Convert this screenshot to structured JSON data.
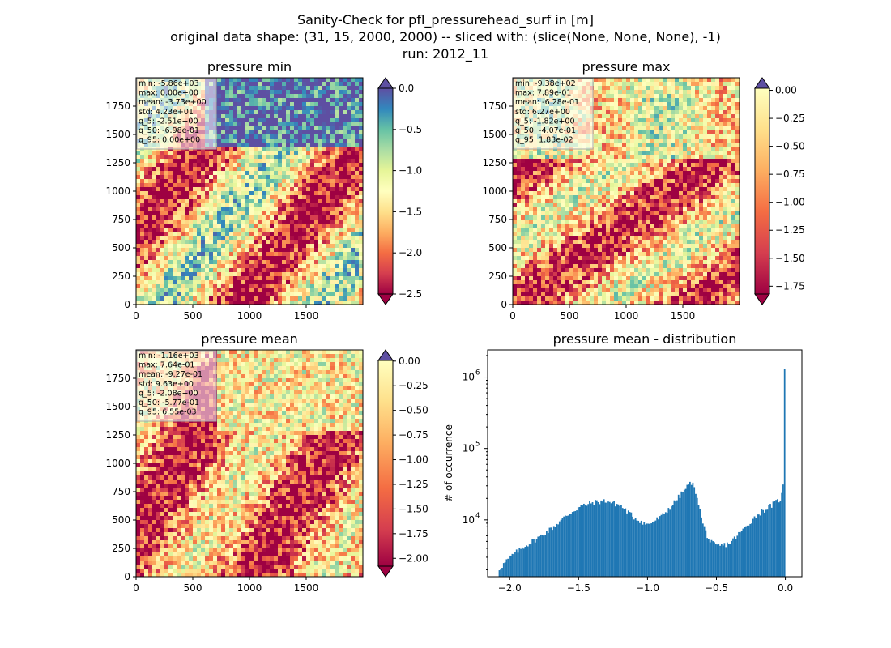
{
  "figure": {
    "title_lines": [
      "Sanity-Check for pfl_pressurehead_surf in [m]",
      "original data shape: (31, 15, 2000, 2000) -- sliced with: (slice(None, None, None), -1)",
      "run: 2012_11"
    ]
  },
  "chart_data": [
    {
      "type": "heatmap",
      "title": "pressure min",
      "colormap": "Spectral",
      "xticks": [
        "0",
        "500",
        "1000",
        "1500"
      ],
      "yticks": [
        "0",
        "250",
        "500",
        "750",
        "1000",
        "1250",
        "1500",
        "1750"
      ],
      "xlim": [
        0,
        2000
      ],
      "ylim": [
        0,
        2000
      ],
      "colorbar": {
        "ticks": [
          "0.0",
          "−0.5",
          "−1.0",
          "−1.5",
          "−2.0",
          "−2.5"
        ],
        "range": [
          -2.5,
          0.0
        ],
        "extend": "both"
      },
      "stats": [
        "min: -5.86e+03",
        "max: 0.00e+00",
        "mean: -3.73e+00",
        "std: 4.23e+01",
        "q_5: -2.51e+00",
        "q_50: -6.98e-01",
        "q_95: 0.00e+00"
      ]
    },
    {
      "type": "heatmap",
      "title": "pressure max",
      "colormap": "Spectral",
      "xticks": [
        "0",
        "500",
        "1000",
        "1500"
      ],
      "yticks": [
        "0",
        "250",
        "500",
        "750",
        "1000",
        "1250",
        "1500",
        "1750"
      ],
      "xlim": [
        0,
        2000
      ],
      "ylim": [
        0,
        2000
      ],
      "colorbar": {
        "ticks": [
          "0.00",
          "−0.25",
          "−0.50",
          "−0.75",
          "−1.00",
          "−1.25",
          "−1.50",
          "−1.75"
        ],
        "range": [
          -1.82,
          0.0183
        ],
        "extend": "both"
      },
      "stats": [
        "min: -9.38e+02",
        "max: 7.89e-01",
        "mean: -6.28e-01",
        "std: 6.27e+00",
        "q_5: -1.82e+00",
        "q_50: -4.07e-01",
        "q_95: 1.83e-02"
      ]
    },
    {
      "type": "heatmap",
      "title": "pressure mean",
      "colormap": "Spectral",
      "xticks": [
        "0",
        "500",
        "1000",
        "1500"
      ],
      "yticks": [
        "0",
        "250",
        "500",
        "750",
        "1000",
        "1250",
        "1500",
        "1750"
      ],
      "xlim": [
        0,
        2000
      ],
      "ylim": [
        0,
        2000
      ],
      "colorbar": {
        "ticks": [
          "0.00",
          "−0.25",
          "−0.50",
          "−0.75",
          "−1.00",
          "−1.25",
          "−1.50",
          "−1.75",
          "−2.00"
        ],
        "range": [
          -2.08,
          0.00655
        ],
        "extend": "both"
      },
      "stats": [
        "min: -1.16e+03",
        "max: 7.64e-01",
        "mean: -9.27e-01",
        "std: 9.63e+00",
        "q_5: -2.08e+00",
        "q_50: -5.77e-01",
        "q_95: 6.55e-03"
      ]
    },
    {
      "type": "bar",
      "title": "pressure mean - distribution",
      "ylabel": "# of occurrence",
      "xlabel": "",
      "yscale": "log",
      "color": "#1f77b4",
      "xlim": [
        -2.16,
        0.12
      ],
      "ylim": [
        1600,
        2400000
      ],
      "xticks": [
        "−2.0",
        "−1.5",
        "−1.0",
        "−0.5",
        "0.0"
      ],
      "xtick_values": [
        -2.0,
        -1.5,
        -1.0,
        -0.5,
        0.0
      ],
      "yticks": [
        "10",
        "10",
        "10"
      ],
      "ytick_exponents": [
        "4",
        "5",
        "6"
      ],
      "ytick_values": [
        10000,
        100000,
        1000000
      ],
      "bins": {
        "start": -2.08,
        "end": 0.0,
        "count": 200
      },
      "profile_points": [
        [
          -2.08,
          2000
        ],
        [
          -2.0,
          3000
        ],
        [
          -1.9,
          4200
        ],
        [
          -1.8,
          5500
        ],
        [
          -1.7,
          7500
        ],
        [
          -1.6,
          11000
        ],
        [
          -1.5,
          15000
        ],
        [
          -1.4,
          17500
        ],
        [
          -1.3,
          18500
        ],
        [
          -1.2,
          16000
        ],
        [
          -1.1,
          11000
        ],
        [
          -1.0,
          8500
        ],
        [
          -0.9,
          11000
        ],
        [
          -0.8,
          18000
        ],
        [
          -0.72,
          28000
        ],
        [
          -0.68,
          34000
        ],
        [
          -0.64,
          22000
        ],
        [
          -0.6,
          9000
        ],
        [
          -0.55,
          5000
        ],
        [
          -0.5,
          4300
        ],
        [
          -0.45,
          4400
        ],
        [
          -0.4,
          4800
        ],
        [
          -0.3,
          7500
        ],
        [
          -0.2,
          12000
        ],
        [
          -0.1,
          16000
        ],
        [
          -0.03,
          20000
        ],
        [
          -0.01,
          35000
        ],
        [
          0.0,
          1300000
        ]
      ]
    }
  ]
}
